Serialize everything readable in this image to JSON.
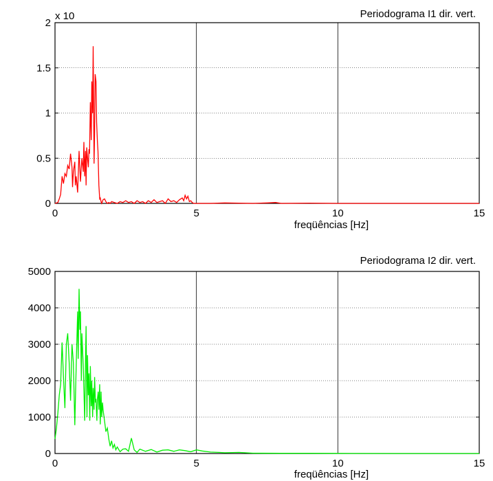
{
  "chart_data": [
    {
      "type": "line",
      "title": "Periodograma I1 dir. vert.",
      "xlabel": "freqüências [Hz]",
      "ylabel": "",
      "multiplier_label": "x 10",
      "xlim": [
        0,
        15
      ],
      "ylim": [
        0,
        2
      ],
      "xticks": [
        "0",
        "5",
        "10",
        "15"
      ],
      "yticks": [
        "0",
        "0.5",
        "1",
        "1.5",
        "2"
      ],
      "grid": true,
      "color": "#ff0000",
      "series": [
        {
          "x": [
            0.0,
            0.1,
            0.15,
            0.2,
            0.25,
            0.3,
            0.35,
            0.4,
            0.45,
            0.5,
            0.55,
            0.6,
            0.62,
            0.65,
            0.7,
            0.72,
            0.75,
            0.8,
            0.85,
            0.9,
            0.95,
            1.0,
            1.02,
            1.05,
            1.08,
            1.1,
            1.12,
            1.15,
            1.18,
            1.2,
            1.22,
            1.25,
            1.28,
            1.3,
            1.33,
            1.35,
            1.38,
            1.4,
            1.42,
            1.45,
            1.47,
            1.5,
            1.52,
            1.55,
            1.58,
            1.6,
            1.63,
            1.65,
            1.7,
            1.75,
            1.8,
            1.85,
            1.9,
            1.95,
            2.0,
            2.1,
            2.2,
            2.3,
            2.4,
            2.5,
            2.6,
            2.7,
            2.8,
            2.9,
            3.0,
            3.1,
            3.2,
            3.3,
            3.4,
            3.5,
            3.6,
            3.7,
            3.8,
            3.9,
            4.0,
            4.1,
            4.2,
            4.3,
            4.4,
            4.5,
            4.55,
            4.6,
            4.65,
            4.7,
            4.75,
            4.8,
            4.85,
            4.9,
            5.0,
            5.5,
            6.0,
            7.0,
            7.5,
            7.8,
            8.0,
            9.0,
            10.0,
            12.0,
            15.0
          ],
          "y": [
            0.0,
            0.01,
            0.05,
            0.1,
            0.3,
            0.22,
            0.33,
            0.3,
            0.42,
            0.38,
            0.55,
            0.4,
            0.18,
            0.35,
            0.46,
            0.2,
            0.3,
            0.12,
            0.58,
            0.24,
            0.5,
            0.35,
            0.68,
            0.3,
            0.58,
            0.2,
            0.62,
            0.5,
            0.4,
            0.6,
            0.55,
            1.12,
            0.7,
            1.35,
            1.0,
            1.74,
            0.44,
            0.8,
            1.43,
            1.35,
            0.9,
            0.68,
            0.58,
            0.2,
            0.05,
            0.06,
            0.02,
            0.0,
            0.04,
            0.05,
            0.02,
            0.0,
            0.01,
            0.0,
            0.02,
            0.01,
            0.0,
            0.02,
            0.01,
            0.03,
            0.01,
            0.02,
            0.0,
            0.03,
            0.01,
            0.02,
            0.0,
            0.03,
            0.01,
            0.04,
            0.01,
            0.02,
            0.03,
            0.0,
            0.05,
            0.02,
            0.03,
            0.01,
            0.04,
            0.06,
            0.03,
            0.09,
            0.05,
            0.08,
            0.02,
            0.03,
            0.01,
            0.0,
            0.0,
            0.0,
            0.005,
            0.0,
            0.005,
            0.01,
            0.0,
            0.003,
            0.0,
            0.0,
            0.0
          ]
        }
      ]
    },
    {
      "type": "line",
      "title": "Periodograma I2 dir. vert.",
      "xlabel": "freqüências [Hz]",
      "ylabel": "",
      "xlim": [
        0,
        15
      ],
      "ylim": [
        0,
        5000
      ],
      "xticks": [
        "0",
        "5",
        "10",
        "15"
      ],
      "yticks": [
        "0",
        "1000",
        "2000",
        "3000",
        "4000",
        "5000"
      ],
      "grid": true,
      "color": "#00ee00",
      "series": [
        {
          "x": [
            0.0,
            0.05,
            0.1,
            0.15,
            0.2,
            0.25,
            0.3,
            0.35,
            0.4,
            0.45,
            0.5,
            0.55,
            0.6,
            0.65,
            0.7,
            0.75,
            0.8,
            0.82,
            0.85,
            0.88,
            0.9,
            0.93,
            0.95,
            1.0,
            1.05,
            1.08,
            1.1,
            1.13,
            1.15,
            1.18,
            1.2,
            1.23,
            1.25,
            1.28,
            1.3,
            1.33,
            1.35,
            1.38,
            1.4,
            1.43,
            1.45,
            1.48,
            1.5,
            1.53,
            1.55,
            1.58,
            1.6,
            1.63,
            1.65,
            1.68,
            1.7,
            1.75,
            1.8,
            1.85,
            1.9,
            1.95,
            2.0,
            2.05,
            2.1,
            2.15,
            2.2,
            2.3,
            2.4,
            2.5,
            2.6,
            2.7,
            2.8,
            2.9,
            3.0,
            3.2,
            3.4,
            3.6,
            3.8,
            4.0,
            4.2,
            4.4,
            4.6,
            4.8,
            5.0,
            5.2,
            5.5,
            5.8,
            6.0,
            6.5,
            7.0,
            8.0,
            9.0,
            10.0,
            12.0,
            15.0
          ],
          "y": [
            400,
            700,
            1100,
            1600,
            1900,
            3050,
            2100,
            1250,
            3000,
            3300,
            2500,
            1450,
            3000,
            2500,
            780,
            2400,
            3900,
            2600,
            4520,
            3400,
            3900,
            2000,
            3300,
            2400,
            900,
            2600,
            3500,
            1000,
            2700,
            1600,
            2200,
            900,
            2400,
            1300,
            2000,
            1000,
            1800,
            1200,
            2100,
            1400,
            1500,
            900,
            1500,
            1700,
            1200,
            1900,
            800,
            1700,
            1000,
            1400,
            1200,
            900,
            600,
            700,
            400,
            200,
            350,
            150,
            250,
            100,
            180,
            50,
            120,
            130,
            60,
            420,
            100,
            30,
            120,
            60,
            110,
            40,
            90,
            100,
            60,
            100,
            80,
            50,
            100,
            70,
            40,
            30,
            20,
            30,
            10,
            5,
            5,
            3,
            0,
            0
          ]
        }
      ]
    }
  ]
}
